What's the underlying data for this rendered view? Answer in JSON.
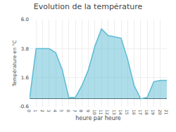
{
  "chart_data": {
    "type": "area",
    "title": "Evolution de la température",
    "xlabel": "heure par heure",
    "ylabel": "Température en °C",
    "x": [
      0,
      1,
      2,
      3,
      4,
      5,
      6,
      7,
      8,
      9,
      10,
      11,
      12,
      13,
      14,
      15,
      16,
      17,
      18,
      19,
      20,
      21
    ],
    "values": [
      0.0,
      3.8,
      3.8,
      3.8,
      3.5,
      2.2,
      0.1,
      0.1,
      1.0,
      2.2,
      4.0,
      5.3,
      4.8,
      4.7,
      4.6,
      3.0,
      1.0,
      0.0,
      0.1,
      1.3,
      1.4,
      1.4
    ],
    "color": "#5bbbd4",
    "xlim": [
      0,
      21
    ],
    "ylim": [
      -0.6,
      6.0
    ],
    "xticks": [
      0,
      1,
      2,
      3,
      4,
      5,
      6,
      7,
      8,
      9,
      10,
      11,
      12,
      13,
      14,
      15,
      16,
      17,
      18,
      19,
      20,
      21
    ],
    "yticks": [
      -0.6,
      1.6,
      3.8,
      {
        "value": 6.0,
        "label": "6.0"
      }
    ],
    "grid": true
  }
}
